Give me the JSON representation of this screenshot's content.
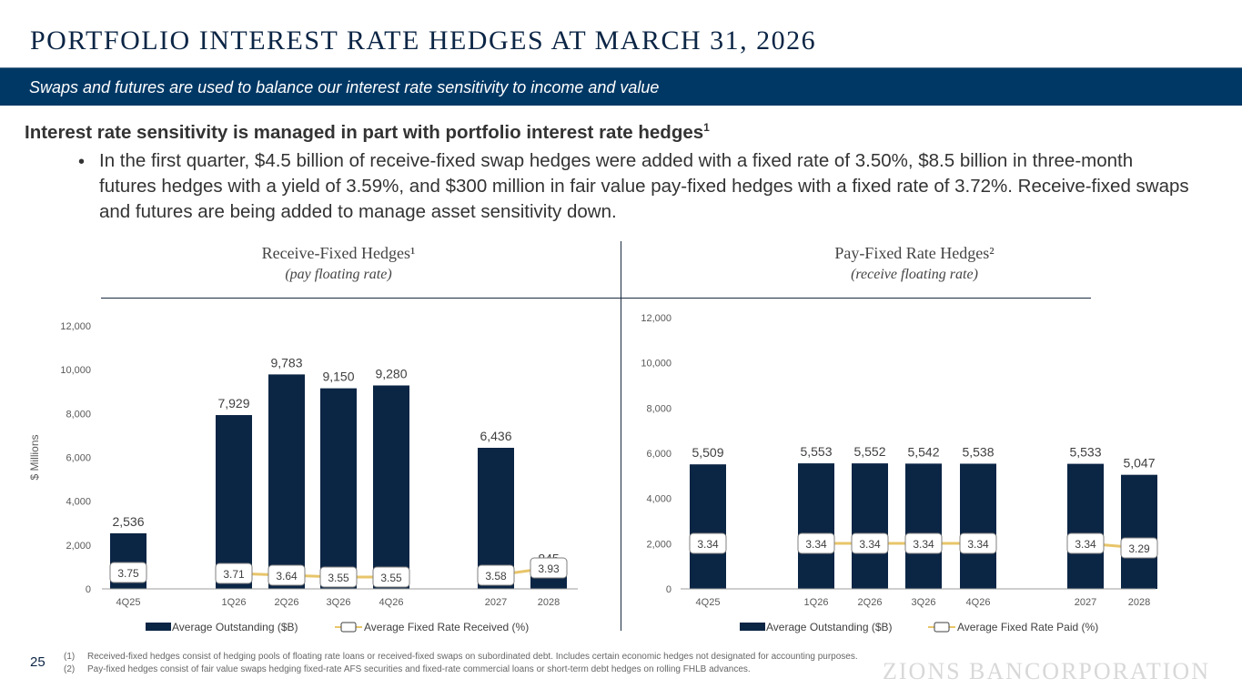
{
  "header": {
    "title": "PORTFOLIO INTEREST RATE HEDGES AT MARCH 31, 2026",
    "banner": "Swaps and futures are used to balance our interest rate sensitivity to income and value"
  },
  "body": {
    "headline": "Interest rate sensitivity is managed in part with portfolio interest rate hedges",
    "headline_sup": "1",
    "bullet_symbol": "•",
    "bullet": "In the first quarter, $4.5 billion of receive-fixed swap hedges were added with a fixed rate of 3.50%, $8.5 billion in three-month futures hedges with a yield of 3.59%, and $300 million in fair value pay-fixed hedges with a fixed rate of 3.72%. Receive-fixed swaps and futures are being added to manage asset sensitivity down."
  },
  "panels": {
    "left": {
      "title": "Receive-Fixed Hedges¹",
      "subtitle": "(pay floating rate)"
    },
    "right": {
      "title": "Pay-Fixed Rate Hedges²",
      "subtitle": "(receive floating rate)"
    }
  },
  "chart_data": [
    {
      "type": "bar",
      "title": "Receive-Fixed Hedges¹ (pay floating rate)",
      "xlabel": "",
      "ylabel": "$ Millions",
      "ylim": [
        0,
        12000
      ],
      "yticks": [
        "0",
        "2,000",
        "4,000",
        "6,000",
        "8,000",
        "10,000",
        "12,000"
      ],
      "categories": [
        "4Q25",
        "1Q26",
        "2Q26",
        "3Q26",
        "4Q26",
        "2027",
        "2028"
      ],
      "series": [
        {
          "name": "Average Outstanding ($B)",
          "kind": "bar",
          "color": "#0b2545",
          "values": [
            2536,
            7929,
            9783,
            9150,
            9280,
            6436,
            845
          ],
          "labels": [
            "2,536",
            "7,929",
            "9,783",
            "9,150",
            "9,280",
            "6,436",
            "845"
          ]
        },
        {
          "name": "Average Fixed Rate Received (%)",
          "kind": "line",
          "color": "#e8c56a",
          "values": [
            3.75,
            3.71,
            3.64,
            3.55,
            3.55,
            3.58,
            3.93
          ],
          "labels": [
            "3.75",
            "3.71",
            "3.64",
            "3.55",
            "3.55",
            "3.58",
            "3.93"
          ]
        }
      ],
      "legend": "bottom",
      "grid": false
    },
    {
      "type": "bar",
      "title": "Pay-Fixed Rate Hedges² (receive floating rate)",
      "xlabel": "",
      "ylabel": "",
      "ylim": [
        0,
        12000
      ],
      "yticks": [
        "0",
        "2,000",
        "4,000",
        "6,000",
        "8,000",
        "10,000",
        "12,000"
      ],
      "categories": [
        "4Q25",
        "1Q26",
        "2Q26",
        "3Q26",
        "4Q26",
        "2027",
        "2028"
      ],
      "series": [
        {
          "name": "Average Outstanding ($B)",
          "kind": "bar",
          "color": "#0b2545",
          "values": [
            5509,
            5553,
            5552,
            5542,
            5538,
            5533,
            5047
          ],
          "labels": [
            "5,509",
            "5,553",
            "5,552",
            "5,542",
            "5,538",
            "5,533",
            "5,047"
          ]
        },
        {
          "name": "Average Fixed Rate Paid (%)",
          "kind": "line",
          "color": "#e8c56a",
          "values": [
            3.34,
            3.34,
            3.34,
            3.34,
            3.34,
            3.34,
            3.29
          ],
          "labels": [
            "3.34",
            "3.34",
            "3.34",
            "3.34",
            "3.34",
            "3.34",
            "3.29"
          ]
        }
      ],
      "legend": "bottom",
      "grid": false
    }
  ],
  "footer": {
    "page_number": "25",
    "notes": [
      {
        "num": "(1)",
        "text": "Received-fixed hedges consist of hedging pools of floating rate loans or received-fixed swaps on subordinated debt. Includes certain economic hedges not designated for accounting purposes."
      },
      {
        "num": "(2)",
        "text": "Pay-fixed hedges consist of fair value swaps hedging fixed-rate AFS securities and fixed-rate commercial loans or short-term debt hedges on rolling FHLB advances."
      }
    ],
    "logo": "ZIONS BANCORPORATION"
  }
}
